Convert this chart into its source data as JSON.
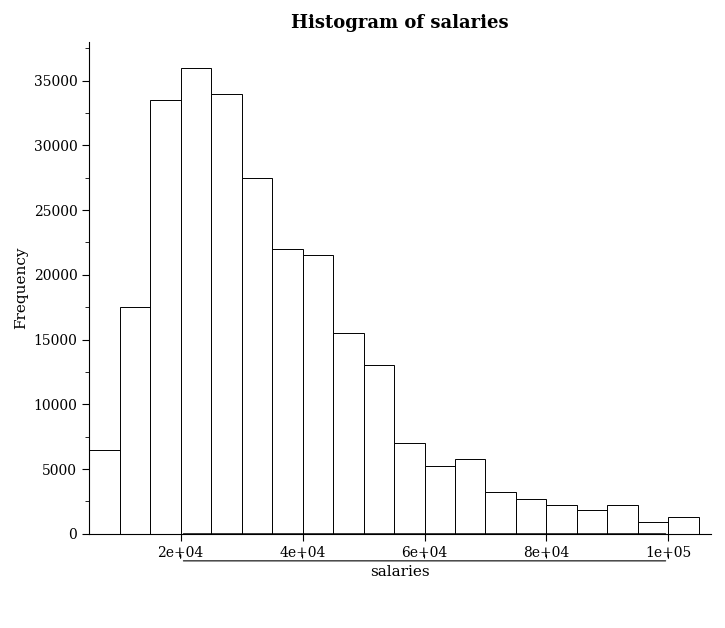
{
  "title": "Histogram of salaries",
  "xlabel": "salaries",
  "ylabel": "Frequency",
  "bar_edges": [
    5000,
    10000,
    15000,
    20000,
    25000,
    30000,
    35000,
    40000,
    45000,
    50000,
    55000,
    60000,
    65000,
    70000,
    75000,
    80000,
    85000,
    90000,
    95000,
    100000,
    105000
  ],
  "bar_heights": [
    6500,
    17500,
    33500,
    36000,
    34000,
    27500,
    22000,
    21500,
    15500,
    13000,
    7000,
    5200,
    5800,
    3200,
    2700,
    2200,
    1800,
    2200,
    900,
    1300
  ],
  "bar_color": "#ffffff",
  "bar_edgecolor": "#000000",
  "background_color": "#ffffff",
  "ylim": [
    0,
    38000
  ],
  "xlim": [
    5000,
    107000
  ],
  "yticks": [
    0,
    5000,
    10000,
    15000,
    20000,
    25000,
    30000,
    35000
  ],
  "xticks": [
    20000,
    40000,
    60000,
    80000,
    100000
  ],
  "xtick_labels": [
    "2e+04",
    "4e+04",
    "6e+04",
    "8e+04",
    "1e+05"
  ],
  "title_fontsize": 13,
  "label_fontsize": 11,
  "tick_fontsize": 10,
  "font_family": "DejaVu Serif"
}
